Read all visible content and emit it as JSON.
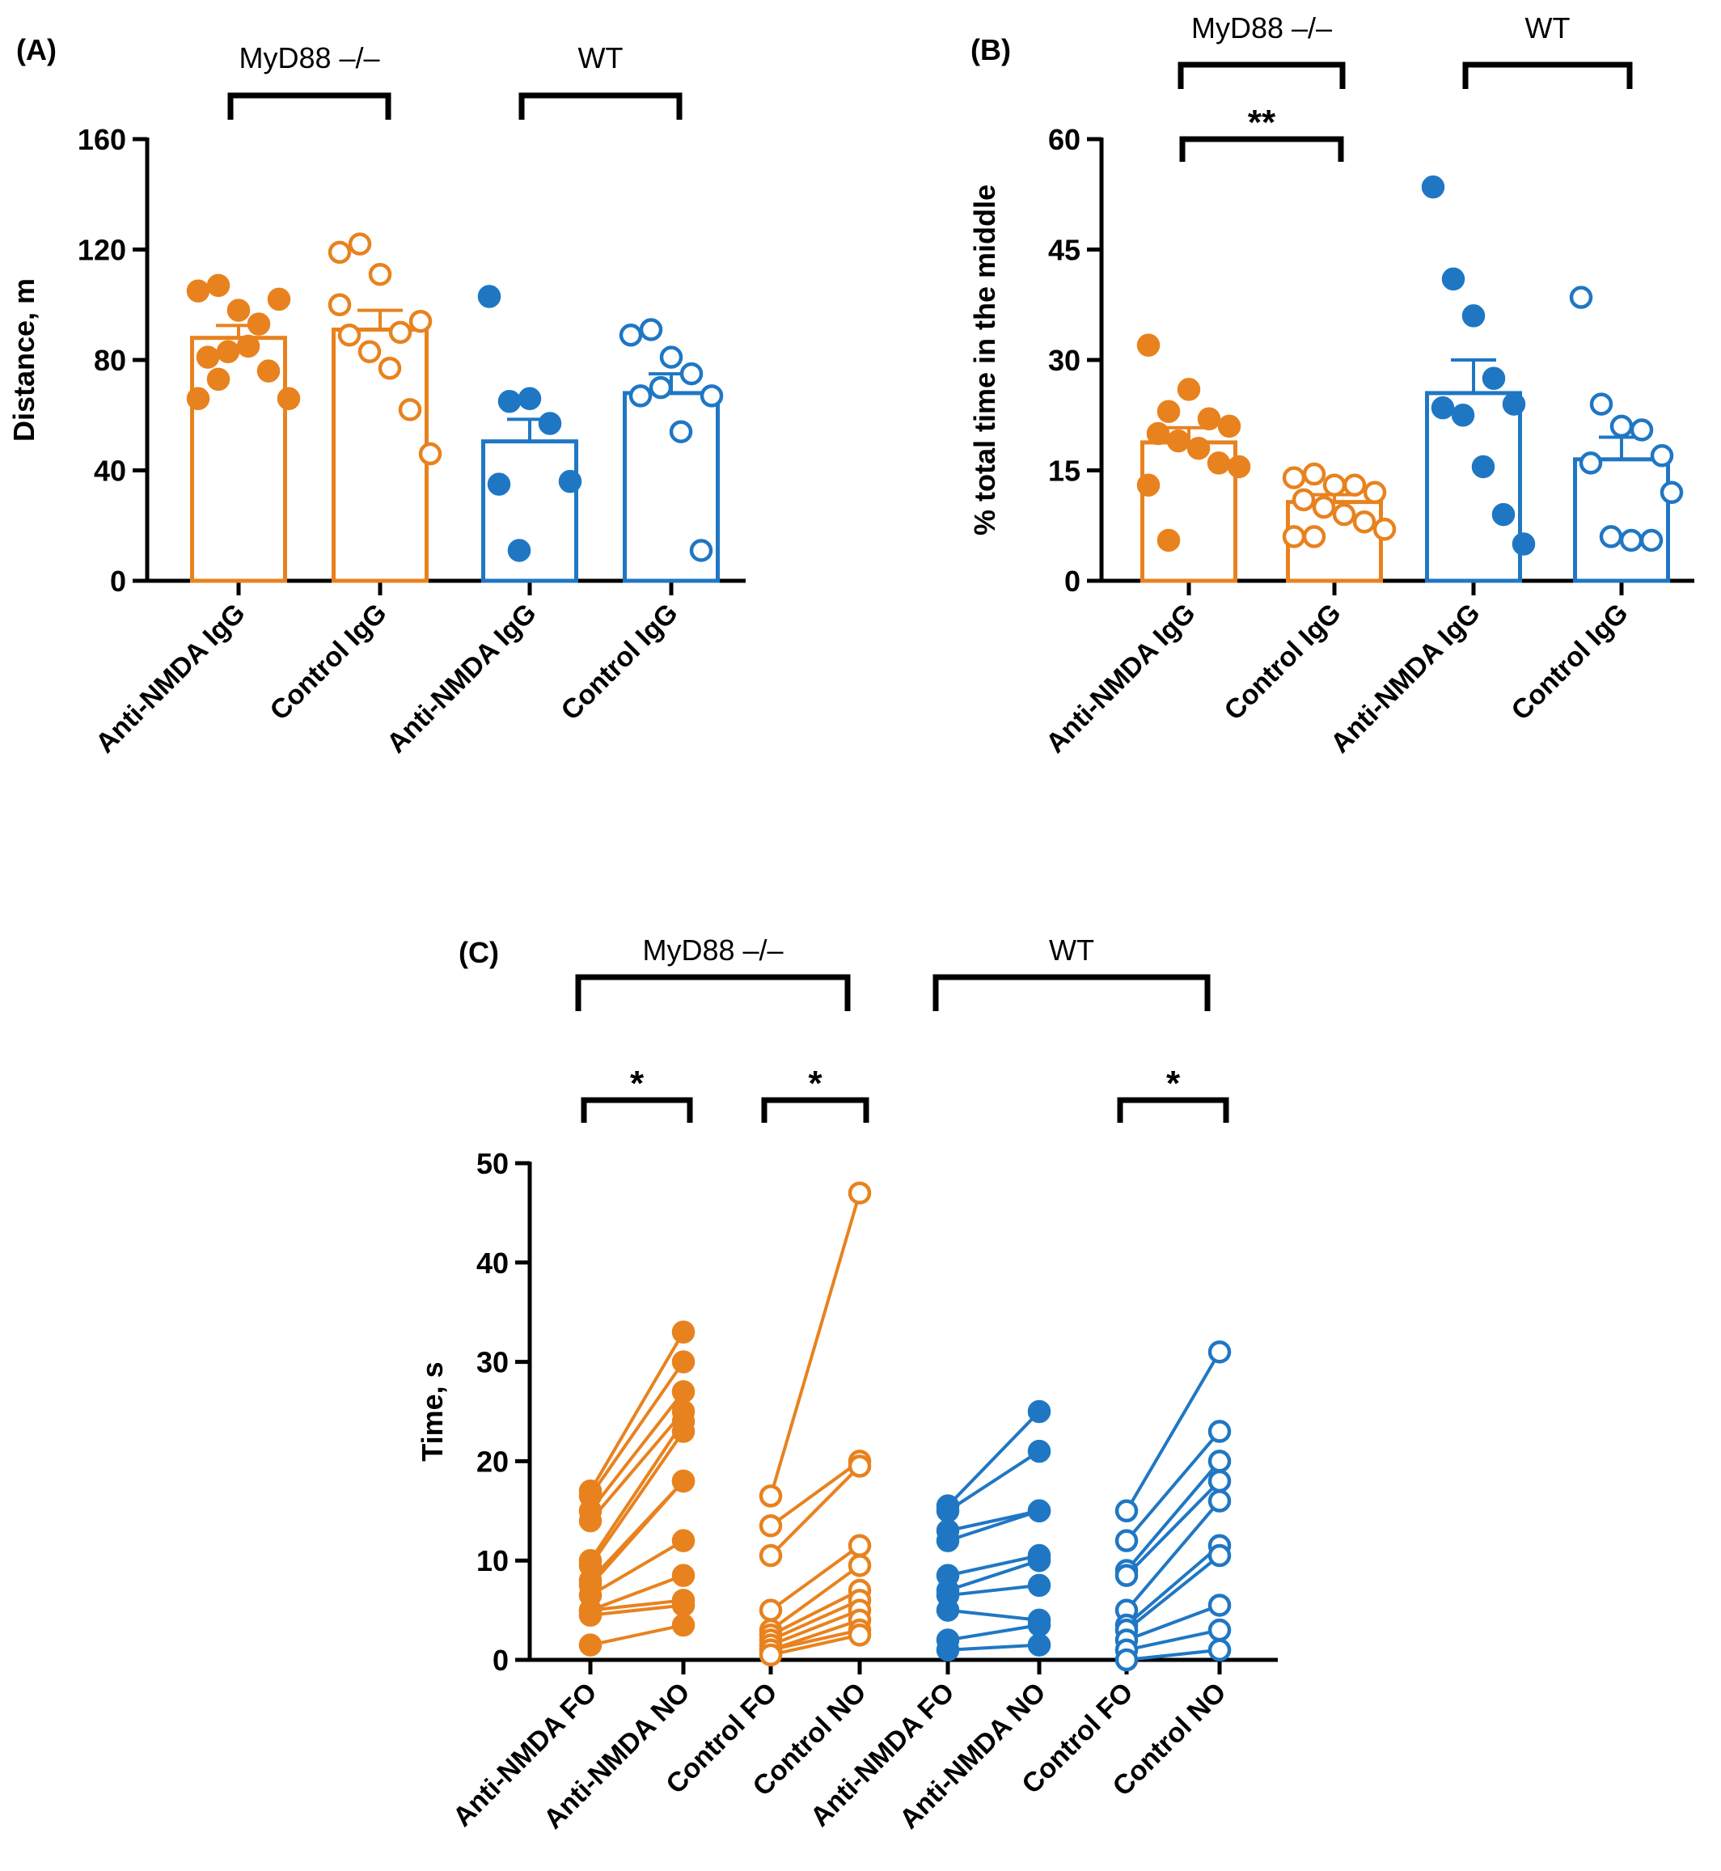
{
  "colors": {
    "orange": "#E8821E",
    "blue": "#1F77C4",
    "black": "#000000"
  },
  "chart_data": [
    {
      "panel": "(A)",
      "type": "bar",
      "ylabel": "Distance, m",
      "ylim": [
        0,
        160
      ],
      "yticks": [
        0,
        40,
        80,
        120,
        160
      ],
      "categories": [
        "Anti-NMDA IgG",
        "Control IgG",
        "Anti-NMDA IgG",
        "Control IgG"
      ],
      "groups": [
        {
          "label": "MyD88 –/–",
          "categories": [
            0,
            1
          ]
        },
        {
          "label": "WT",
          "categories": [
            2,
            3
          ]
        }
      ],
      "series": [
        {
          "category": 0,
          "color": "orange",
          "filled": true,
          "mean": 88,
          "sem": 4.5,
          "points": [
            105,
            107,
            98,
            93,
            102,
            81,
            83,
            85,
            76,
            66,
            66,
            73
          ]
        },
        {
          "category": 1,
          "color": "orange",
          "filled": false,
          "mean": 91,
          "sem": 7,
          "points": [
            119,
            122,
            111,
            90,
            94,
            89,
            83,
            77,
            62,
            46,
            100
          ]
        },
        {
          "category": 2,
          "color": "blue",
          "filled": true,
          "mean": 50.5,
          "sem": 8,
          "points": [
            103,
            65,
            66,
            57,
            36,
            35,
            11
          ]
        },
        {
          "category": 3,
          "color": "blue",
          "filled": false,
          "mean": 68,
          "sem": 7,
          "points": [
            89,
            91,
            81,
            75,
            67,
            67,
            70,
            54,
            11
          ]
        }
      ],
      "significance": []
    },
    {
      "panel": "(B)",
      "type": "bar",
      "ylabel": "% total time in the middle",
      "ylim": [
        0,
        60
      ],
      "yticks": [
        0,
        15,
        30,
        45,
        60
      ],
      "categories": [
        "Anti-NMDA IgG",
        "Control IgG",
        "Anti-NMDA IgG",
        "Control IgG"
      ],
      "groups": [
        {
          "label": "MyD88 –/–",
          "categories": [
            0,
            1
          ]
        },
        {
          "label": "WT",
          "categories": [
            2,
            3
          ]
        }
      ],
      "series": [
        {
          "category": 0,
          "color": "orange",
          "filled": true,
          "mean": 18.8,
          "sem": 2,
          "points": [
            32,
            23,
            26,
            22,
            21,
            20,
            19,
            18,
            16,
            15.5,
            13,
            5.5
          ]
        },
        {
          "category": 1,
          "color": "orange",
          "filled": false,
          "mean": 10.7,
          "sem": 1,
          "points": [
            14,
            14.5,
            13,
            13,
            12,
            11,
            10,
            9,
            8,
            7,
            6,
            6
          ]
        },
        {
          "category": 2,
          "color": "blue",
          "filled": true,
          "mean": 25.5,
          "sem": 4.5,
          "points": [
            53.5,
            41,
            36,
            27.5,
            24,
            23.5,
            22.5,
            15.5,
            9,
            5
          ]
        },
        {
          "category": 3,
          "color": "blue",
          "filled": false,
          "mean": 16.5,
          "sem": 3,
          "points": [
            38.5,
            24,
            21,
            20.5,
            17,
            16,
            6,
            5.5,
            5.5,
            12
          ]
        }
      ],
      "significance": [
        {
          "from": 0,
          "to": 1,
          "label": "**"
        }
      ]
    },
    {
      "panel": "(C)",
      "type": "line",
      "ylabel": "Time, s",
      "ylim": [
        0,
        50
      ],
      "yticks": [
        0,
        10,
        20,
        30,
        40,
        50
      ],
      "categories": [
        "Anti-NMDA FO",
        "Anti-NMDA NO",
        "Control FO",
        "Control NO",
        "Anti-NMDA FO",
        "Anti-NMDA NO",
        "Control FO",
        "Control NO"
      ],
      "groups": [
        {
          "label": "MyD88 –/–",
          "categories": [
            0,
            3
          ]
        },
        {
          "label": "WT",
          "categories": [
            4,
            7
          ]
        }
      ],
      "pairs": [
        {
          "from": 0,
          "to": 1,
          "color": "orange",
          "filled": true,
          "values": [
            [
              17,
              33
            ],
            [
              16.5,
              30
            ],
            [
              15,
              27
            ],
            [
              14,
              25
            ],
            [
              10,
              24
            ],
            [
              9.5,
              23
            ],
            [
              8,
              18
            ],
            [
              7.5,
              18
            ],
            [
              6.5,
              12
            ],
            [
              5,
              8.5
            ],
            [
              5,
              6
            ],
            [
              4.5,
              5.5
            ],
            [
              1.5,
              3.5
            ]
          ]
        },
        {
          "from": 2,
          "to": 3,
          "color": "orange",
          "filled": false,
          "values": [
            [
              16.5,
              47
            ],
            [
              13.5,
              20
            ],
            [
              10.5,
              19.5
            ],
            [
              5,
              11.5
            ],
            [
              3,
              9.5
            ],
            [
              2.5,
              7
            ],
            [
              2,
              6
            ],
            [
              1.5,
              5
            ],
            [
              1,
              4
            ],
            [
              1,
              3
            ],
            [
              0.5,
              2.5
            ]
          ]
        },
        {
          "from": 4,
          "to": 5,
          "color": "blue",
          "filled": true,
          "values": [
            [
              15.5,
              25
            ],
            [
              15,
              21
            ],
            [
              13,
              15
            ],
            [
              12,
              15
            ],
            [
              8.5,
              10.5
            ],
            [
              7,
              10
            ],
            [
              6.5,
              7.5
            ],
            [
              5,
              4
            ],
            [
              2,
              3.5
            ],
            [
              1,
              1.5
            ]
          ]
        },
        {
          "from": 6,
          "to": 7,
          "color": "blue",
          "filled": false,
          "values": [
            [
              15,
              31
            ],
            [
              12,
              23
            ],
            [
              9,
              20
            ],
            [
              8.5,
              18
            ],
            [
              5,
              16
            ],
            [
              3.5,
              11.5
            ],
            [
              3,
              10.5
            ],
            [
              2,
              5.5
            ],
            [
              1,
              3
            ],
            [
              0,
              1
            ]
          ]
        }
      ],
      "significance": [
        {
          "from": 0,
          "to": 1,
          "label": "*"
        },
        {
          "from": 2,
          "to": 3,
          "label": "*"
        },
        {
          "from": 6,
          "to": 7,
          "label": "*"
        }
      ]
    }
  ]
}
